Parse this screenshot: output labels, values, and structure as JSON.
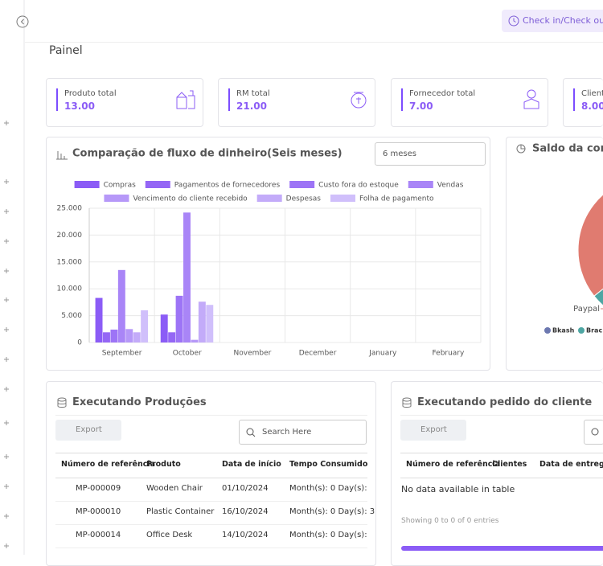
{
  "topbar": {
    "button": "Check in/Check out"
  },
  "page_title": "Painel",
  "stats": [
    {
      "label": "Produto total",
      "value": "13.00"
    },
    {
      "label": "RM total",
      "value": "21.00"
    },
    {
      "label": "Fornecedor total",
      "value": "7.00"
    },
    {
      "label": "Client",
      "value": "8.00"
    }
  ],
  "chart_data": [
    {
      "type": "bar",
      "title": "Comparação de fluxo de dinheiro(Seis meses)",
      "filter": "6 meses",
      "categories": [
        "September",
        "October",
        "November",
        "December",
        "January",
        "February"
      ],
      "series": [
        {
          "name": "Compras",
          "color": "#8b5cf6",
          "values": [
            8300,
            5200,
            0,
            0,
            0,
            0
          ]
        },
        {
          "name": "Pagamentos de fornecedores",
          "color": "#9466f5",
          "values": [
            1900,
            1900,
            0,
            0,
            0,
            0
          ]
        },
        {
          "name": "Custo fora do estoque",
          "color": "#9d74f6",
          "values": [
            2400,
            8700,
            0,
            0,
            0,
            0
          ]
        },
        {
          "name": "Vendas",
          "color": "#a985f7",
          "values": [
            13500,
            24200,
            0,
            0,
            0,
            0
          ]
        },
        {
          "name": "Vencimento do cliente recebido",
          "color": "#b698f8",
          "values": [
            2500,
            500,
            0,
            0,
            0,
            0
          ]
        },
        {
          "name": "Despesas",
          "color": "#c3abf9",
          "values": [
            1900,
            7600,
            0,
            0,
            0,
            0
          ]
        },
        {
          "name": "Folha de pagamento",
          "color": "#d0bffb",
          "values": [
            6000,
            7000,
            0,
            0,
            0,
            0
          ]
        }
      ],
      "ylim": [
        0,
        25000
      ],
      "yticks": [
        0,
        {
          "value": 5000,
          "label": "5.000"
        },
        {
          "value": 10000,
          "label": "10.000"
        },
        {
          "value": 15000,
          "label": "15.000"
        },
        {
          "value": 20000,
          "label": "20.000"
        },
        {
          "value": 25000,
          "label": "25.000"
        }
      ],
      "grid": true
    },
    {
      "type": "pie",
      "title": "Saldo da cont",
      "categories": [
        "Bkash",
        "Brac",
        "Paypal"
      ],
      "values": [
        5,
        45,
        50
      ],
      "colors": [
        "#6c78b0",
        "#4ea6a3",
        "#e07b70"
      ]
    }
  ],
  "tables": [
    {
      "title": "Executando Produções",
      "export": "Export",
      "search": "Search Here",
      "columns": [
        "Número de referência",
        "Produto",
        "Data de início",
        "Tempo Consumido"
      ],
      "rows": [
        [
          "MP-000009",
          "Wooden Chair",
          "01/10/2024",
          "Month(s): 0 Day(s):"
        ],
        [
          "MP-000010",
          "Plastic Container",
          "16/10/2024",
          "Month(s): 0 Day(s): 3"
        ],
        [
          "MP-000014",
          "Office Desk",
          "14/10/2024",
          "Month(s): 0 Day(s):"
        ]
      ]
    },
    {
      "title": "Executando pedido do cliente",
      "export": "Export",
      "columns": [
        "Número de referência",
        "Clientes",
        "Data de entrega"
      ],
      "empty": "No data available in table",
      "info": "Showing 0 to 0 of 0 entries"
    }
  ]
}
